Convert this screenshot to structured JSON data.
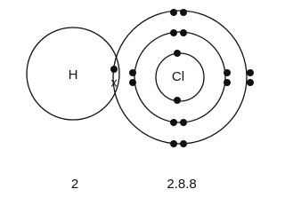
{
  "atoms": [
    {
      "symbol": "H",
      "shells": "2"
    },
    {
      "symbol": "Cl",
      "shells": "2.8.8"
    }
  ],
  "shared_electron_marker": "x"
}
